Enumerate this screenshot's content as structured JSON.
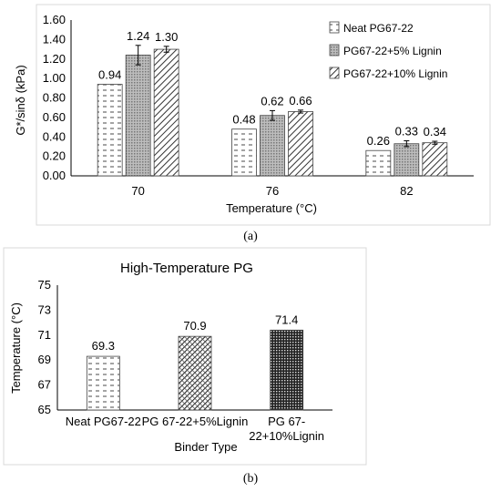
{
  "chart_data": [
    {
      "type": "bar",
      "caption": "(a)",
      "xlabel": "Temperature (°C)",
      "ylabel": "G*/sinδ (kPa)",
      "ylim": [
        0,
        1.6
      ],
      "yticks": [
        "0.00",
        "0.20",
        "0.40",
        "0.60",
        "0.80",
        "1.00",
        "1.20",
        "1.40",
        "1.60"
      ],
      "categories": [
        "70",
        "76",
        "82"
      ],
      "series": [
        {
          "name": "Neat PG67-22",
          "values": [
            0.94,
            0.48,
            0.26
          ],
          "labels": [
            "0.94",
            "0.48",
            "0.26"
          ],
          "pattern": "dash",
          "errors": [
            0.0,
            0.0,
            0.0
          ]
        },
        {
          "name": "PG67-22+5% Lignin",
          "values": [
            1.24,
            0.62,
            0.33
          ],
          "labels": [
            "1.24",
            "0.62",
            "0.33"
          ],
          "pattern": "dots",
          "errors": [
            0.1,
            0.05,
            0.03
          ]
        },
        {
          "name": "PG67-22+10% Lignin",
          "values": [
            1.3,
            0.66,
            0.34
          ],
          "labels": [
            "1.30",
            "0.66",
            "0.34"
          ],
          "pattern": "diag",
          "errors": [
            0.03,
            0.015,
            0.015
          ]
        }
      ],
      "legend_position": "top-right",
      "grid": false
    },
    {
      "type": "bar",
      "caption": "(b)",
      "title": "High-Temperature PG",
      "xlabel": "Binder Type",
      "ylabel": "Temperature (°C)",
      "ylim": [
        65,
        75
      ],
      "yticks": [
        "65",
        "67",
        "69",
        "71",
        "73",
        "75"
      ],
      "categories": [
        [
          "Neat PG67-22"
        ],
        [
          "PG 67-22+5%Lignin"
        ],
        [
          "PG 67-",
          "22+10%Lignin"
        ]
      ],
      "values": [
        69.3,
        70.9,
        71.4
      ],
      "labels": [
        "69.3",
        "70.9",
        "71.4"
      ],
      "patterns": [
        "dash",
        "diag-dense",
        "dots-dark"
      ],
      "grid": false
    }
  ]
}
